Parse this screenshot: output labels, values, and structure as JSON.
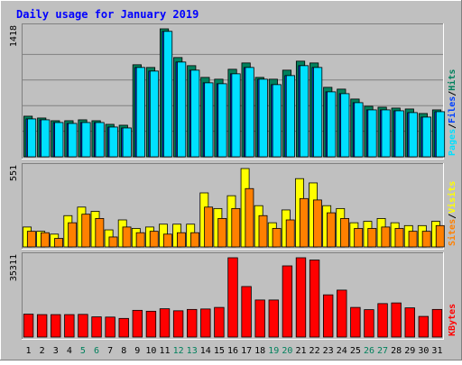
{
  "chart_data": {
    "type": "bar",
    "title": "Daily usage for January 2019",
    "categories": [
      "1",
      "2",
      "3",
      "4",
      "5",
      "6",
      "7",
      "8",
      "9",
      "10",
      "11",
      "12",
      "13",
      "14",
      "15",
      "16",
      "17",
      "18",
      "19",
      "20",
      "21",
      "22",
      "23",
      "24",
      "25",
      "26",
      "27",
      "28",
      "29",
      "30",
      "31"
    ],
    "weekend_days": [
      "5",
      "6",
      "12",
      "13",
      "19",
      "20",
      "26",
      "27"
    ],
    "panels": [
      {
        "id": "traffic",
        "ymax": 1418,
        "ymax_label": "1418",
        "side_label_parts": [
          "Pages",
          "/",
          "Files",
          "/",
          "Hits"
        ],
        "series": [
          {
            "name": "Hits",
            "values": [
              450,
              430,
              400,
              400,
              410,
              400,
              360,
              350,
              1020,
              990,
              1418,
              1100,
              1010,
              880,
              860,
              970,
              1040,
              880,
              860,
              960,
              1060,
              1040,
              770,
              750,
              640,
              560,
              550,
              540,
              530,
              480,
              520
            ]
          },
          {
            "name": "Files",
            "values": [
              420,
              410,
              380,
              370,
              380,
              380,
              330,
              320,
              990,
              950,
              1390,
              1050,
              960,
              820,
              810,
              920,
              990,
              860,
              800,
              900,
              1010,
              990,
              720,
              700,
              600,
              520,
              520,
              510,
              490,
              440,
              500
            ]
          },
          {
            "name": "Pages",
            "values": [
              420,
              410,
              380,
              370,
              380,
              380,
              330,
              320,
              990,
              950,
              1390,
              1050,
              960,
              820,
              810,
              920,
              990,
              860,
              800,
              900,
              1010,
              990,
              720,
              700,
              600,
              520,
              520,
              510,
              490,
              440,
              500
            ]
          }
        ]
      },
      {
        "id": "visitors",
        "ymax": 551,
        "ymax_label": "551",
        "side_label_parts": [
          "Sites",
          "/",
          "Visits"
        ],
        "series": [
          {
            "name": "Visits",
            "values": [
              140,
              110,
              90,
              220,
              280,
              250,
              120,
              190,
              130,
              140,
              160,
              160,
              160,
              380,
              270,
              360,
              551,
              290,
              170,
              260,
              480,
              450,
              290,
              270,
              170,
              180,
              200,
              170,
              150,
              150,
              180
            ]
          },
          {
            "name": "Sites",
            "values": [
              110,
              100,
              60,
              170,
              230,
              200,
              70,
              140,
              100,
              110,
              90,
              100,
              100,
              280,
              200,
              270,
              410,
              220,
              130,
              190,
              340,
              330,
              240,
              200,
              130,
              130,
              140,
              130,
              110,
              110,
              150
            ]
          }
        ]
      },
      {
        "id": "kbytes",
        "ymax": 35311,
        "ymax_label": "35311",
        "side_label_parts": [
          "KBytes"
        ],
        "series": [
          {
            "name": "KBytes",
            "values": [
              10200,
              10000,
              10000,
              10000,
              10100,
              9000,
              8900,
              8300,
              11900,
              11500,
              12600,
              11700,
              12300,
              12500,
              13200,
              35311,
              22500,
              16500,
              16500,
              31700,
              35311,
              34300,
              18800,
              20900,
              13200,
              12200,
              14900,
              15200,
              13000,
              9200,
              12300
            ]
          }
        ]
      }
    ],
    "colors": {
      "background": "#c0c0c0",
      "frame_light": "#ffffff",
      "frame_dark": "#808080",
      "title": "#0000ff",
      "hits": "#00805c",
      "files": "#0040ff",
      "pages": "#00e0ff",
      "visits": "#ffff00",
      "sites": "#ff8000",
      "kbytes": "#ff0000",
      "weekday_label": "#000000",
      "weekend_label": "#00805c",
      "slash": "#000000"
    }
  }
}
